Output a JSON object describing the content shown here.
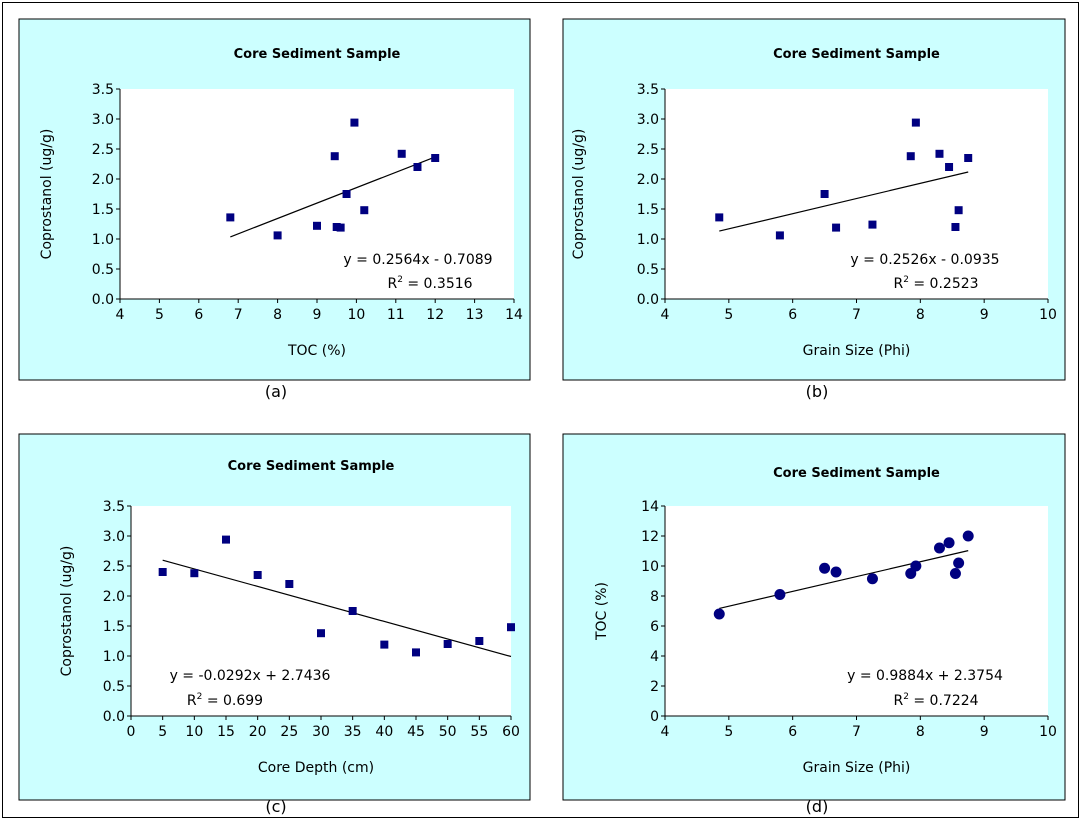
{
  "colors": {
    "panel_bg": "#ccffff",
    "plot_bg": "#ffffff",
    "marker": "#000080",
    "trendline": "#000000"
  },
  "chart_data": [
    {
      "type": "scatter",
      "caption": "(a)",
      "title": "Core Sediment Sample",
      "xlabel": "TOC (%)",
      "ylabel": "Coprostanol (ug/g)",
      "xlim": [
        4,
        14
      ],
      "ylim": [
        0,
        3.5
      ],
      "xticks": [
        4,
        5,
        6,
        7,
        8,
        9,
        10,
        11,
        12,
        13,
        14
      ],
      "xtick_labels": [
        "4",
        "5",
        "6",
        "7",
        "8",
        "9",
        "10",
        "11",
        "12",
        "13",
        "14"
      ],
      "yticks": [
        0,
        0.5,
        1,
        1.5,
        2,
        2.5,
        3,
        3.5
      ],
      "ytick_labels": [
        "0.0",
        "0.5",
        "1.0",
        "1.5",
        "2.0",
        "2.5",
        "3.0",
        "3.5"
      ],
      "marker": "square",
      "grid": false,
      "legend": "none",
      "points": [
        {
          "x": 6.8,
          "y": 1.36
        },
        {
          "x": 8.0,
          "y": 1.06
        },
        {
          "x": 9.0,
          "y": 1.22
        },
        {
          "x": 9.45,
          "y": 2.38
        },
        {
          "x": 9.5,
          "y": 1.2
        },
        {
          "x": 9.6,
          "y": 1.19
        },
        {
          "x": 9.75,
          "y": 1.75
        },
        {
          "x": 9.95,
          "y": 2.94
        },
        {
          "x": 10.2,
          "y": 1.48
        },
        {
          "x": 11.15,
          "y": 2.42
        },
        {
          "x": 11.55,
          "y": 2.2
        },
        {
          "x": 12.0,
          "y": 2.35
        }
      ],
      "trendline": {
        "x_range": [
          6.8,
          12.0
        ],
        "slope": 0.2564,
        "intercept": -0.7089
      },
      "equation": "y = 0.2564x - 0.7089",
      "r2_label": "R",
      "r2_sup": "2",
      "r2_value": " = 0.3516"
    },
    {
      "type": "scatter",
      "caption": "(b)",
      "title": "Core Sediment Sample",
      "xlabel": "Grain Size (Phi)",
      "ylabel": "Coprostanol (ug/g)",
      "xlim": [
        4,
        10
      ],
      "ylim": [
        0,
        3.5
      ],
      "xticks": [
        4,
        5,
        6,
        7,
        8,
        9,
        10
      ],
      "xtick_labels": [
        "4",
        "5",
        "6",
        "7",
        "8",
        "9",
        "10"
      ],
      "yticks": [
        0,
        0.5,
        1,
        1.5,
        2,
        2.5,
        3,
        3.5
      ],
      "ytick_labels": [
        "0.0",
        "0.5",
        "1.0",
        "1.5",
        "2.0",
        "2.5",
        "3.0",
        "3.5"
      ],
      "marker": "square",
      "grid": false,
      "legend": "none",
      "points": [
        {
          "x": 4.85,
          "y": 1.36
        },
        {
          "x": 5.8,
          "y": 1.06
        },
        {
          "x": 6.5,
          "y": 1.75
        },
        {
          "x": 6.68,
          "y": 1.19
        },
        {
          "x": 7.25,
          "y": 1.24
        },
        {
          "x": 7.85,
          "y": 2.38
        },
        {
          "x": 7.93,
          "y": 2.94
        },
        {
          "x": 8.3,
          "y": 2.42
        },
        {
          "x": 8.45,
          "y": 2.2
        },
        {
          "x": 8.55,
          "y": 1.2
        },
        {
          "x": 8.6,
          "y": 1.48
        },
        {
          "x": 8.75,
          "y": 2.35
        }
      ],
      "trendline": {
        "x_range": [
          4.85,
          8.75
        ],
        "slope": 0.2526,
        "intercept": -0.0935
      },
      "equation": "y = 0.2526x - 0.0935",
      "r2_label": "R",
      "r2_sup": "2",
      "r2_value": " = 0.2523"
    },
    {
      "type": "scatter",
      "caption": "(c)",
      "title": "Core Sediment Sample",
      "xlabel": "Core Depth (cm)",
      "ylabel": "Coprostanol (ug/g)",
      "xlim": [
        0,
        60
      ],
      "ylim": [
        0,
        3.5
      ],
      "xticks": [
        0,
        5,
        10,
        15,
        20,
        25,
        30,
        35,
        40,
        45,
        50,
        55,
        60
      ],
      "xtick_labels": [
        "0",
        "5",
        "10",
        "15",
        "20",
        "25",
        "30",
        "35",
        "40",
        "45",
        "50",
        "55",
        "60"
      ],
      "yticks": [
        0,
        0.5,
        1,
        1.5,
        2,
        2.5,
        3,
        3.5
      ],
      "ytick_labels": [
        "0.0",
        "0.5",
        "1.0",
        "1.5",
        "2.0",
        "2.5",
        "3.0",
        "3.5"
      ],
      "marker": "square",
      "grid": false,
      "legend": "none",
      "points": [
        {
          "x": 5,
          "y": 2.4
        },
        {
          "x": 10,
          "y": 2.38
        },
        {
          "x": 15,
          "y": 2.94
        },
        {
          "x": 20,
          "y": 2.35
        },
        {
          "x": 25,
          "y": 2.2
        },
        {
          "x": 30,
          "y": 1.38
        },
        {
          "x": 35,
          "y": 1.75
        },
        {
          "x": 40,
          "y": 1.19
        },
        {
          "x": 45,
          "y": 1.06
        },
        {
          "x": 50,
          "y": 1.2
        },
        {
          "x": 55,
          "y": 1.25
        },
        {
          "x": 60,
          "y": 1.48
        }
      ],
      "trendline": {
        "x_range": [
          5,
          60
        ],
        "slope": -0.0292,
        "intercept": 2.7436
      },
      "equation": "y = -0.0292x + 2.7436",
      "r2_label": "R",
      "r2_sup": "2",
      "r2_value": " = 0.699"
    },
    {
      "type": "scatter",
      "caption": "(d)",
      "title": "Core Sediment Sample",
      "xlabel": "Grain Size (Phi)",
      "ylabel": "TOC (%)",
      "xlim": [
        4,
        10
      ],
      "ylim": [
        0,
        14
      ],
      "xticks": [
        4,
        5,
        6,
        7,
        8,
        9,
        10
      ],
      "xtick_labels": [
        "4",
        "5",
        "6",
        "7",
        "8",
        "9",
        "10"
      ],
      "yticks": [
        0,
        2,
        4,
        6,
        8,
        10,
        12,
        14
      ],
      "ytick_labels": [
        "0",
        "2",
        "4",
        "6",
        "8",
        "10",
        "12",
        "14"
      ],
      "marker": "circle",
      "grid": false,
      "legend": "none",
      "points": [
        {
          "x": 4.85,
          "y": 6.8
        },
        {
          "x": 5.8,
          "y": 8.1
        },
        {
          "x": 6.5,
          "y": 9.85
        },
        {
          "x": 6.68,
          "y": 9.6
        },
        {
          "x": 7.25,
          "y": 9.15
        },
        {
          "x": 7.85,
          "y": 9.5
        },
        {
          "x": 7.93,
          "y": 10.0
        },
        {
          "x": 8.3,
          "y": 11.2
        },
        {
          "x": 8.45,
          "y": 11.55
        },
        {
          "x": 8.55,
          "y": 9.5
        },
        {
          "x": 8.6,
          "y": 10.2
        },
        {
          "x": 8.75,
          "y": 12.0
        }
      ],
      "trendline": {
        "x_range": [
          4.85,
          8.75
        ],
        "slope": 0.9884,
        "intercept": 2.3754
      },
      "equation": "y = 0.9884x + 2.3754",
      "r2_label": "R",
      "r2_sup": "2",
      "r2_value": " = 0.7224"
    }
  ]
}
